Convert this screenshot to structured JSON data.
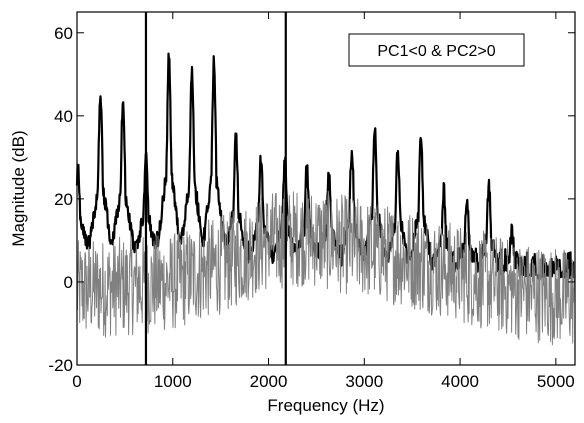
{
  "chart_data": {
    "type": "line",
    "title": "",
    "xlabel": "Frequency (Hz)",
    "ylabel": "Magnitude (dB)",
    "xlim": [
      0,
      5200
    ],
    "ylim": [
      -20,
      65
    ],
    "xticks": [
      0,
      1000,
      2000,
      3000,
      4000,
      5000
    ],
    "yticks": [
      -20,
      0,
      20,
      40,
      60
    ],
    "xtick_labels": [
      "0",
      "1000",
      "2000",
      "3000",
      "4000",
      "5000"
    ],
    "ytick_labels": [
      "-20",
      "0",
      "20",
      "40",
      "60"
    ],
    "grid": false,
    "annotation": "PC1<0 & PC2>0",
    "annotation_position": "top-right",
    "vertical_markers": [
      720,
      2180
    ],
    "colors": {
      "series_1": "#000000",
      "series_2": "#808080",
      "markers": "#000000"
    },
    "series": [
      {
        "color": "#000000",
        "style": "thick",
        "peaks": [
          [
            10,
            27
          ],
          [
            245,
            45
          ],
          [
            480,
            43
          ],
          [
            720,
            30
          ],
          [
            960,
            55
          ],
          [
            1200,
            51
          ],
          [
            1430,
            53
          ],
          [
            1660,
            35
          ],
          [
            1920,
            30
          ],
          [
            2170,
            29
          ],
          [
            2400,
            28
          ],
          [
            2630,
            27
          ],
          [
            2870,
            32
          ],
          [
            3110,
            38
          ],
          [
            3350,
            32
          ],
          [
            3590,
            36
          ],
          [
            3830,
            22
          ],
          [
            4070,
            20
          ],
          [
            4300,
            23
          ],
          [
            4540,
            13
          ],
          [
            4780,
            3
          ],
          [
            5020,
            4
          ]
        ]
      },
      {
        "color": "#808080",
        "style": "thin",
        "envelope": [
          [
            0,
            -2
          ],
          [
            1000,
            0
          ],
          [
            1600,
            5
          ],
          [
            2000,
            10
          ],
          [
            2400,
            11
          ],
          [
            2800,
            9
          ],
          [
            3400,
            6
          ],
          [
            4000,
            2
          ],
          [
            4600,
            -2
          ],
          [
            5200,
            -4
          ]
        ]
      }
    ]
  }
}
